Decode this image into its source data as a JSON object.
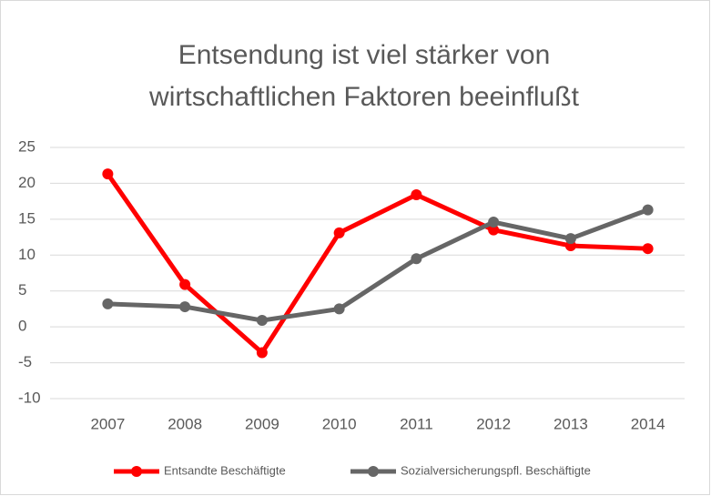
{
  "chart_data": {
    "type": "line",
    "title": [
      "Entsendung ist viel stärker von",
      "wirtschaftlichen Faktoren beeinflußt"
    ],
    "categories": [
      "2007",
      "2008",
      "2009",
      "2010",
      "2011",
      "2012",
      "2013",
      "2014"
    ],
    "series": [
      {
        "name": "Entsandte Beschäftigte",
        "color": "#ff0000",
        "values": [
          21.3,
          5.9,
          -3.6,
          13.1,
          18.4,
          13.5,
          11.3,
          10.9
        ]
      },
      {
        "name": "Sozialversicherungspfl. Beschäftigte",
        "color": "#666666",
        "values": [
          3.2,
          2.8,
          0.9,
          2.5,
          9.5,
          14.6,
          12.3,
          16.3
        ]
      }
    ],
    "ylim": [
      -10,
      25
    ],
    "yticks": [
      -10,
      -5,
      0,
      5,
      10,
      15,
      20,
      25
    ],
    "grid": true,
    "legend": "bottom"
  }
}
